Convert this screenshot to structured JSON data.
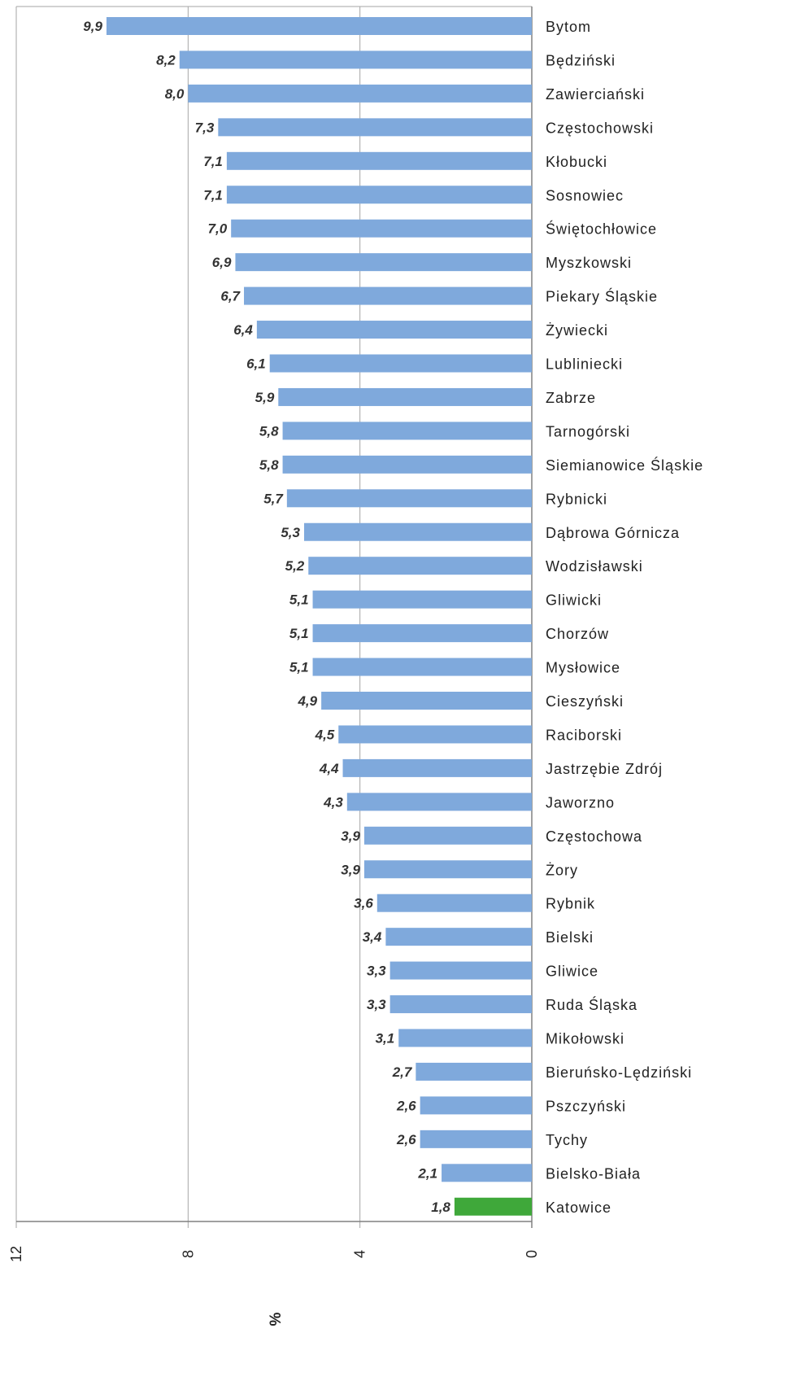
{
  "chart_data": {
    "type": "bar",
    "orientation": "horizontal",
    "x_direction": "reversed",
    "categories": [
      "Bytom",
      "Będziński",
      "Zawierciański",
      "Częstochowski",
      "Kłobucki",
      "Sosnowiec",
      "Świętochłowice",
      "Myszkowski",
      "Piekary Śląskie",
      "Żywiecki",
      "Lubliniecki",
      "Zabrze",
      "Tarnogórski",
      "Siemianowice Śląskie",
      "Rybnicki",
      "Dąbrowa Górnicza",
      "Wodzisławski",
      "Gliwicki",
      "Chorzów",
      "Mysłowice",
      "Cieszyński",
      "Raciborski",
      "Jastrzębie Zdrój",
      "Jaworzno",
      "Częstochowa",
      "Żory",
      "Rybnik",
      "Bielski",
      "Gliwice",
      "Ruda Śląska",
      "Mikołowski",
      "Bieruńsko-Lędziński",
      "Pszczyński",
      "Tychy",
      "Bielsko-Biała",
      "Katowice"
    ],
    "values": [
      9.9,
      8.2,
      8.0,
      7.3,
      7.1,
      7.1,
      7.0,
      6.9,
      6.7,
      6.4,
      6.1,
      5.9,
      5.8,
      5.8,
      5.7,
      5.3,
      5.2,
      5.1,
      5.1,
      5.1,
      4.9,
      4.5,
      4.4,
      4.3,
      3.9,
      3.9,
      3.6,
      3.4,
      3.3,
      3.3,
      3.1,
      2.7,
      2.6,
      2.6,
      2.1,
      1.8
    ],
    "value_labels": [
      "9,9",
      "8,2",
      "8,0",
      "7,3",
      "7,1",
      "7,1",
      "7,0",
      "6,9",
      "6,7",
      "6,4",
      "6,1",
      "5,9",
      "5,8",
      "5,8",
      "5,7",
      "5,3",
      "5,2",
      "5,1",
      "5,1",
      "5,1",
      "4,9",
      "4,5",
      "4,4",
      "4,3",
      "3,9",
      "3,9",
      "3,6",
      "3,4",
      "3,3",
      "3,3",
      "3,1",
      "2,7",
      "2,6",
      "2,6",
      "2,1",
      "1,8"
    ],
    "highlight_category": "Katowice",
    "xlim": [
      0,
      12
    ],
    "x_ticks": [
      0,
      4,
      8,
      12
    ],
    "x_tick_labels": [
      "0",
      "4",
      "8",
      "12"
    ],
    "xlabel": "%",
    "title": "",
    "ylabel": "",
    "grid": true,
    "legend": "none",
    "colors": {
      "bar": "#7fa9dc",
      "highlight": "#3fa83a",
      "grid": "#a6a6a6",
      "axis": "#808080",
      "text": "#222222"
    }
  }
}
